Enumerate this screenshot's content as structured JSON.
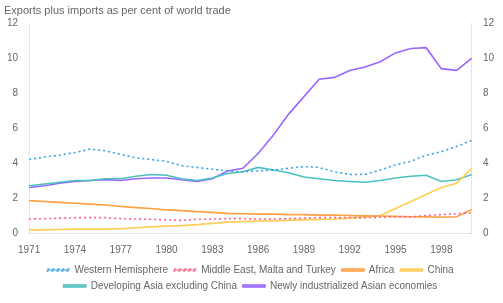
{
  "chart_data": {
    "type": "line",
    "title": "Exports plus imports as per cent of world trade",
    "x": [
      1971,
      1972,
      1973,
      1974,
      1975,
      1976,
      1977,
      1978,
      1979,
      1980,
      1981,
      1982,
      1983,
      1984,
      1985,
      1986,
      1987,
      1988,
      1989,
      1990,
      1991,
      1992,
      1993,
      1994,
      1995,
      1996,
      1997,
      1998,
      1999,
      2000
    ],
    "xlim": [
      1971,
      2000
    ],
    "xticks": [
      1971,
      1974,
      1977,
      1980,
      1983,
      1986,
      1989,
      1992,
      1995,
      1998
    ],
    "ylim": [
      0,
      12
    ],
    "yticks": [
      0,
      2,
      4,
      6,
      8,
      10,
      12
    ],
    "y2lim": [
      0,
      12
    ],
    "y2ticks": [
      0,
      2,
      4,
      6,
      8,
      10,
      12
    ],
    "grid": false,
    "legend": "bottom",
    "series": [
      {
        "name": "Western Hemisphere",
        "line_style": "dotted",
        "values": [
          4.2,
          4.35,
          4.45,
          4.6,
          4.8,
          4.7,
          4.5,
          4.3,
          4.2,
          4.1,
          3.85,
          3.75,
          3.65,
          3.55,
          3.5,
          3.55,
          3.6,
          3.7,
          3.8,
          3.75,
          3.5,
          3.35,
          3.35,
          3.6,
          3.9,
          4.1,
          4.45,
          4.65,
          4.95,
          5.3
        ]
      },
      {
        "name": "Middle East, Malta and Turkey",
        "line_style": "dotted",
        "values": [
          0.8,
          0.82,
          0.85,
          0.88,
          0.88,
          0.88,
          0.82,
          0.8,
          0.78,
          0.75,
          0.72,
          0.78,
          0.8,
          0.82,
          0.82,
          0.8,
          0.8,
          0.82,
          0.85,
          0.88,
          0.88,
          0.88,
          0.88,
          0.9,
          0.92,
          0.92,
          1.0,
          1.05,
          1.1,
          1.15
        ]
      },
      {
        "name": "Africa",
        "line_style": "solid",
        "values": [
          1.85,
          1.8,
          1.75,
          1.7,
          1.65,
          1.6,
          1.52,
          1.45,
          1.4,
          1.32,
          1.28,
          1.22,
          1.18,
          1.12,
          1.1,
          1.08,
          1.08,
          1.05,
          1.05,
          1.02,
          1.02,
          1.0,
          0.98,
          0.97,
          0.95,
          0.93,
          0.92,
          0.9,
          0.93,
          1.35
        ]
      },
      {
        "name": "China",
        "line_style": "solid",
        "values": [
          0.18,
          0.18,
          0.2,
          0.22,
          0.22,
          0.22,
          0.25,
          0.3,
          0.35,
          0.4,
          0.42,
          0.48,
          0.55,
          0.62,
          0.65,
          0.68,
          0.7,
          0.72,
          0.75,
          0.78,
          0.8,
          0.85,
          0.9,
          1.0,
          1.4,
          1.8,
          2.2,
          2.6,
          2.85,
          3.7
        ]
      },
      {
        "name": "Developing Asia excluding China",
        "line_style": "solid",
        "values": [
          2.7,
          2.8,
          2.9,
          3.0,
          3.0,
          3.1,
          3.1,
          3.25,
          3.35,
          3.3,
          3.1,
          3.0,
          3.15,
          3.4,
          3.5,
          3.75,
          3.6,
          3.45,
          3.2,
          3.1,
          3.0,
          2.95,
          2.9,
          3.0,
          3.15,
          3.25,
          3.3,
          2.95,
          3.05,
          3.35
        ]
      },
      {
        "name": "Newly industrialized Asian economies",
        "line_style": "solid",
        "values": [
          2.6,
          2.7,
          2.85,
          2.95,
          3.0,
          3.05,
          3.0,
          3.1,
          3.15,
          3.15,
          3.05,
          2.95,
          3.1,
          3.55,
          3.7,
          4.55,
          5.6,
          6.8,
          7.8,
          8.8,
          8.9,
          9.3,
          9.5,
          9.8,
          10.3,
          10.55,
          10.6,
          9.4,
          9.3,
          10.0
        ]
      }
    ]
  }
}
